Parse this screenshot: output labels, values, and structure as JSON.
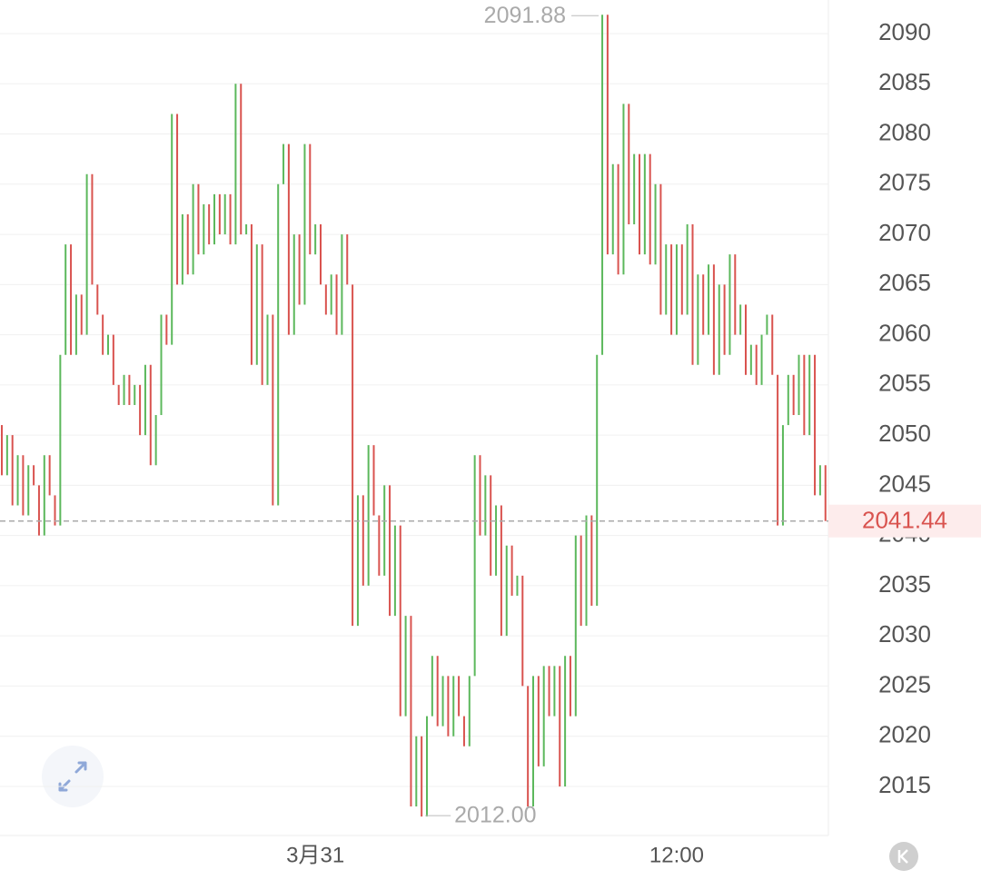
{
  "chart_data": {
    "type": "line-bar",
    "categories": [
      null,
      null,
      null,
      null,
      null,
      null,
      null,
      null,
      null,
      null,
      null,
      null,
      null,
      null,
      null,
      null,
      null,
      null,
      null,
      null,
      null,
      null,
      null,
      null,
      null,
      null,
      null,
      null,
      null,
      null,
      null,
      null,
      null,
      null,
      null,
      null,
      null,
      null,
      null,
      null,
      null,
      null,
      null,
      null,
      null,
      null,
      null,
      null,
      null,
      null,
      null,
      null,
      null,
      null,
      null,
      null,
      null,
      null,
      null,
      "3月31",
      null,
      null,
      null,
      null,
      null,
      null,
      null,
      null,
      null,
      null,
      null,
      null,
      null,
      null,
      null,
      null,
      null,
      null,
      null,
      null,
      null,
      null,
      null,
      null,
      null,
      null,
      null,
      null,
      null,
      null,
      null,
      null,
      null,
      null,
      null,
      null,
      null,
      null,
      null,
      null,
      null,
      null,
      null,
      null,
      null,
      null,
      null,
      null,
      null,
      null,
      null,
      null,
      null,
      null,
      null,
      null,
      null,
      null,
      null,
      null,
      null,
      null,
      null,
      null,
      null,
      null,
      null,
      "12:00",
      null,
      null,
      null,
      null,
      null,
      null,
      null,
      null,
      null,
      null,
      null,
      null,
      null,
      null,
      null,
      null,
      null,
      null,
      null,
      null,
      null,
      null,
      null,
      null,
      null,
      null,
      null,
      null
    ],
    "open": [
      2051,
      2046,
      2050,
      2043,
      2048,
      2042,
      2047,
      2045,
      2040,
      2048,
      2044,
      2041,
      2058,
      2069,
      2058,
      2064,
      2060,
      2076,
      2065,
      2062,
      2058,
      2060,
      2055,
      2053,
      2056,
      2053,
      2055,
      2050,
      2057,
      2047,
      2052,
      2062,
      2059,
      2082,
      2065,
      2072,
      2066,
      2075,
      2068,
      2073,
      2069,
      2074,
      2070,
      2074,
      2069,
      2085,
      2070,
      2071,
      2057,
      2069,
      2055,
      2062,
      2043,
      2075,
      2079,
      2060,
      2070,
      2063,
      2079,
      2068,
      2071,
      2065,
      2062,
      2066,
      2060,
      2070,
      2065,
      2031,
      2044,
      2035,
      2049,
      2042,
      2036,
      2045,
      2032,
      2041,
      2022,
      2032,
      2013,
      2020,
      2012,
      2022,
      2028,
      2021,
      2026,
      2020,
      2026,
      2022,
      2019,
      2026,
      2048,
      2040,
      2046,
      2036,
      2043,
      2030,
      2039,
      2034,
      2036,
      2025,
      2013,
      2026,
      2017,
      2027,
      2022,
      2027,
      2015,
      2028,
      2022,
      2040,
      2031,
      2042,
      2033,
      2058,
      2091.88,
      2068,
      2077,
      2066,
      2083,
      2071,
      2078,
      2068,
      2078,
      2067,
      2075,
      2062,
      2069,
      2060,
      2069,
      2062,
      2071,
      2057,
      2066,
      2060,
      2067,
      2056,
      2065,
      2058,
      2068,
      2060,
      2063,
      2056,
      2059,
      2055,
      2060,
      2062,
      2056,
      2041,
      2051,
      2056,
      2052,
      2058,
      2050,
      2058,
      2044,
      2047
    ],
    "close": [
      2046,
      2050,
      2043,
      2048,
      2042,
      2047,
      2045,
      2040,
      2048,
      2044,
      2041,
      2058,
      2069,
      2058,
      2064,
      2060,
      2076,
      2065,
      2062,
      2058,
      2060,
      2055,
      2053,
      2056,
      2053,
      2055,
      2050,
      2057,
      2047,
      2052,
      2062,
      2059,
      2082,
      2065,
      2072,
      2066,
      2075,
      2068,
      2073,
      2069,
      2074,
      2070,
      2074,
      2069,
      2085,
      2070,
      2071,
      2057,
      2069,
      2055,
      2062,
      2043,
      2075,
      2079,
      2060,
      2070,
      2063,
      2079,
      2068,
      2071,
      2065,
      2062,
      2066,
      2060,
      2070,
      2065,
      2031,
      2044,
      2035,
      2049,
      2042,
      2036,
      2045,
      2032,
      2041,
      2022,
      2032,
      2013,
      2020,
      2012,
      2022,
      2028,
      2021,
      2026,
      2020,
      2026,
      2022,
      2019,
      2026,
      2048,
      2040,
      2046,
      2036,
      2043,
      2030,
      2039,
      2034,
      2036,
      2025,
      2013,
      2026,
      2017,
      2027,
      2022,
      2027,
      2015,
      2028,
      2022,
      2040,
      2031,
      2042,
      2033,
      2058,
      2091.88,
      2068,
      2077,
      2066,
      2083,
      2071,
      2078,
      2068,
      2078,
      2067,
      2075,
      2062,
      2069,
      2060,
      2069,
      2062,
      2071,
      2057,
      2066,
      2060,
      2067,
      2056,
      2065,
      2058,
      2068,
      2060,
      2063,
      2056,
      2059,
      2055,
      2060,
      2062,
      2056,
      2041,
      2051,
      2056,
      2052,
      2058,
      2050,
      2058,
      2044,
      2047,
      2041.44
    ],
    "up_color": "#5cb85c",
    "down_color": "#d9534f",
    "ylim": [
      2010.11,
      2093.35
    ],
    "yticks": [
      2015,
      2020,
      2025,
      2030,
      2035,
      2040,
      2045,
      2050,
      2055,
      2060,
      2065,
      2070,
      2075,
      2080,
      2085,
      2090
    ],
    "grid": true,
    "annotations": [
      {
        "label": "2091.88",
        "value": 2091.88
      },
      {
        "label": "2012.00",
        "value": 2012
      }
    ],
    "last_price": {
      "label": "2041.44",
      "value": 2041.44
    }
  }
}
